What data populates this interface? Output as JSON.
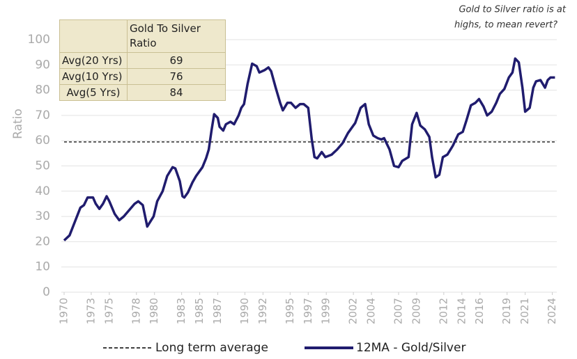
{
  "chart_data": {
    "type": "line",
    "y_label": "Ratio",
    "annotation": [
      "Gold to Silver ratio is at",
      "highs, to mean revert?"
    ],
    "x": [
      1970.0,
      1970.6,
      1971.2,
      1971.8,
      1972.2,
      1972.6,
      1973.2,
      1973.5,
      1973.9,
      1974.3,
      1974.7,
      1975.0,
      1975.6,
      1976.1,
      1976.6,
      1977.2,
      1977.8,
      1978.2,
      1978.7,
      1979.2,
      1979.9,
      1980.3,
      1980.9,
      1981.4,
      1982.0,
      1982.3,
      1982.8,
      1983.1,
      1983.3,
      1983.7,
      1984.2,
      1984.6,
      1985.3,
      1985.7,
      1986.0,
      1986.3,
      1986.6,
      1987.0,
      1987.2,
      1987.6,
      1987.9,
      1988.4,
      1988.8,
      1989.3,
      1989.6,
      1989.9,
      1990.3,
      1990.8,
      1991.3,
      1991.6,
      1992.2,
      1992.6,
      1992.9,
      1993.4,
      1993.9,
      1994.2,
      1994.7,
      1995.1,
      1995.6,
      1996.1,
      1996.5,
      1997.0,
      1997.4,
      1997.7,
      1998.0,
      1998.5,
      1998.9,
      1999.6,
      2000.2,
      2000.8,
      2001.4,
      2002.2,
      2002.8,
      2003.3,
      2003.7,
      2004.2,
      2004.7,
      2005.1,
      2005.4,
      2006.0,
      2006.5,
      2007.0,
      2007.4,
      2008.1,
      2008.5,
      2009.0,
      2009.4,
      2009.9,
      2010.4,
      2010.7,
      2011.1,
      2011.5,
      2011.9,
      2012.4,
      2013.0,
      2013.6,
      2014.1,
      2014.5,
      2015.0,
      2015.5,
      2015.9,
      2016.4,
      2016.8,
      2017.3,
      2017.8,
      2018.2,
      2018.7,
      2019.2,
      2019.6,
      2019.9,
      2020.3,
      2020.7,
      2021.0,
      2021.5,
      2021.9,
      2022.2,
      2022.7,
      2023.2,
      2023.5,
      2023.8,
      2024.3
    ],
    "series": [
      {
        "name": "12MA - Gold/Silver",
        "color": "#201c6e",
        "values": [
          20.5,
          22.5,
          28,
          33.5,
          34.5,
          37.5,
          37.5,
          35,
          33,
          35,
          38,
          36,
          31,
          28.5,
          30,
          32.5,
          35,
          36,
          34.5,
          26,
          30,
          36,
          40,
          46,
          49.5,
          49,
          44,
          38,
          37.5,
          39.5,
          43.5,
          46,
          49.5,
          53,
          56.5,
          64,
          70.5,
          69,
          65.5,
          64,
          66.5,
          67.5,
          66.5,
          70,
          73,
          74.5,
          82.5,
          90.5,
          89.5,
          87,
          88,
          89,
          87.5,
          81,
          75,
          72,
          75,
          75,
          73,
          74.5,
          74.5,
          73,
          60.5,
          53.5,
          53,
          55.5,
          53.5,
          54.5,
          56.5,
          59,
          63,
          67,
          73,
          74.5,
          66.5,
          62,
          61,
          60.5,
          61,
          56.5,
          50,
          49.5,
          52,
          53.5,
          66.5,
          71,
          66,
          64.5,
          61.5,
          53.5,
          45.5,
          46.5,
          53.5,
          54.5,
          58,
          62.5,
          63.5,
          68,
          74,
          75,
          76.5,
          73.5,
          70,
          71.5,
          75,
          78.5,
          80.5,
          85,
          87,
          92.5,
          91,
          81,
          71.5,
          73,
          81,
          83.5,
          84,
          81,
          84,
          85,
          85
        ]
      }
    ],
    "reference_lines": [
      {
        "name": "Long term average",
        "value": 59.5,
        "color": "#000000"
      }
    ],
    "xlim": [
      1970,
      2024.5
    ],
    "xticks": [
      1970,
      1973,
      1975,
      1978,
      1980,
      1983,
      1985,
      1987,
      1990,
      1992,
      1995,
      1997,
      1999,
      2002,
      2004,
      2007,
      2009,
      2012,
      2014,
      2016,
      2019,
      2021,
      2024
    ],
    "ylim": [
      0,
      100
    ],
    "yticks": [
      0,
      10,
      20,
      30,
      40,
      50,
      60,
      70,
      80,
      90,
      100
    ],
    "grid": true
  },
  "table": {
    "header": "Gold To Silver Ratio",
    "rows": [
      [
        "Avg(20 Yrs)",
        69
      ],
      [
        "Avg(10 Yrs)",
        76
      ],
      [
        "Avg(5 Yrs)",
        84
      ]
    ]
  }
}
